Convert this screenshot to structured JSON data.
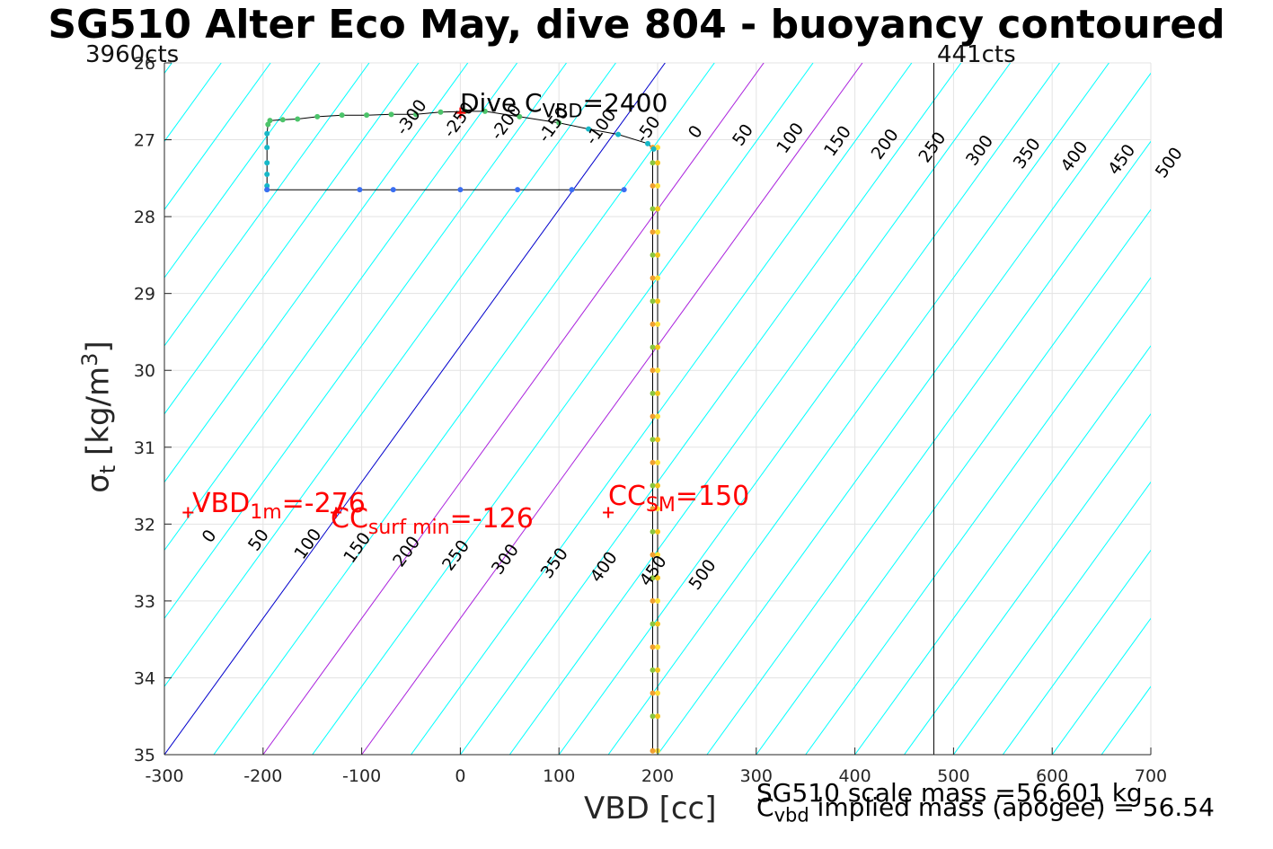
{
  "title": "SG510 Alter Eco May, dive 804 - buoyancy contoured",
  "left_cts": "3960cts",
  "right_cts": "441cts",
  "xlabel": "VBD [cc]",
  "ylabel_main": "σ",
  "ylabel_sub": "t",
  "ylabel_unit": "[kg/m",
  "ylabel_sup": "3",
  "ylabel_close": "]",
  "dive_label": "Dive C",
  "dive_label_sub": "VBD",
  "dive_label_val": "=2400",
  "vbd1m_label": "VBD",
  "vbd1m_sub": "1m",
  "vbd1m_val": "=-276",
  "ccsurf_label": "CC",
  "ccsurf_sub": "surf min",
  "ccsurf_val": "=-126",
  "ccsm_label": "CC",
  "ccsm_sub": "SM",
  "ccsm_val": "=150",
  "scale_mass": "SG510 scale mass =56.601 kg",
  "implied_label": "C",
  "implied_sub": "vbd",
  "implied_val": " implied mass (apogee) = 56.54",
  "colors": {
    "contour": "#00ffff",
    "zero_line": "#0000cc",
    "purple": "#aa22dd",
    "red": "#ff0000"
  },
  "chart_data": {
    "type": "line",
    "xlim": [
      -300,
      700
    ],
    "ylim": [
      26,
      35
    ],
    "y_reversed": true,
    "grid": true,
    "xticks": [
      "-300",
      "-200",
      "-100",
      "0",
      "100",
      "200",
      "300",
      "400",
      "500",
      "600",
      "700"
    ],
    "yticks": [
      "26",
      "27",
      "28",
      "29",
      "30",
      "31",
      "32",
      "33",
      "34",
      "35"
    ],
    "contour_labels_top": [
      "-300",
      "-250",
      "-200",
      "-150",
      "-100",
      "-50",
      "0",
      "50",
      "100",
      "150",
      "200",
      "250",
      "300",
      "350",
      "400",
      "450",
      "500"
    ],
    "contour_labels_bottom": [
      "0",
      "50",
      "100",
      "150",
      "200",
      "250",
      "300",
      "350",
      "400",
      "450",
      "500"
    ],
    "vertical_line_x": 480,
    "series": [
      {
        "x": [
          200,
          200,
          200,
          200,
          200,
          200,
          200,
          200,
          200,
          200,
          200,
          200,
          200,
          200,
          200,
          200,
          200,
          200,
          200,
          200,
          200,
          200,
          200,
          200,
          200,
          200,
          200
        ],
        "y": [
          27.1,
          27.3,
          27.6,
          27.9,
          28.2,
          28.5,
          28.8,
          29.1,
          29.4,
          29.7,
          30.0,
          30.3,
          30.6,
          30.9,
          31.2,
          31.5,
          31.8,
          32.1,
          32.4,
          32.7,
          33.0,
          33.3,
          33.6,
          33.9,
          34.2,
          34.5,
          34.95
        ]
      },
      {
        "x": [
          195,
          195,
          195,
          195,
          195,
          195,
          195,
          195,
          195,
          195,
          195,
          195,
          195,
          195,
          195,
          195,
          195,
          195,
          195,
          195,
          195,
          195,
          195,
          195,
          195,
          195,
          195
        ],
        "y": [
          27.1,
          27.3,
          27.6,
          27.9,
          28.2,
          28.5,
          28.8,
          29.1,
          29.4,
          29.7,
          30.0,
          30.3,
          30.6,
          30.9,
          31.2,
          31.5,
          31.8,
          32.1,
          32.4,
          32.7,
          33.0,
          33.3,
          33.6,
          33.9,
          34.2,
          34.5,
          34.95
        ]
      },
      {
        "x": [
          196,
          190,
          160,
          130,
          100,
          60,
          25,
          5,
          -20,
          -45,
          -70,
          -95,
          -120,
          -145,
          -165,
          -180,
          -193,
          -195,
          -196,
          -196,
          -196,
          -196,
          -196,
          -196
        ],
        "y": [
          27.12,
          27.05,
          26.93,
          26.86,
          26.78,
          26.7,
          26.63,
          26.63,
          26.64,
          26.67,
          26.67,
          26.68,
          26.68,
          26.7,
          26.73,
          26.74,
          26.75,
          26.8,
          26.92,
          27.1,
          27.3,
          27.45,
          27.6,
          27.65
        ]
      },
      {
        "x": [
          -196,
          -102,
          -68,
          0,
          58,
          113,
          166
        ],
        "y": [
          27.65,
          27.65,
          27.65,
          27.65,
          27.65,
          27.65,
          27.65
        ]
      }
    ]
  }
}
